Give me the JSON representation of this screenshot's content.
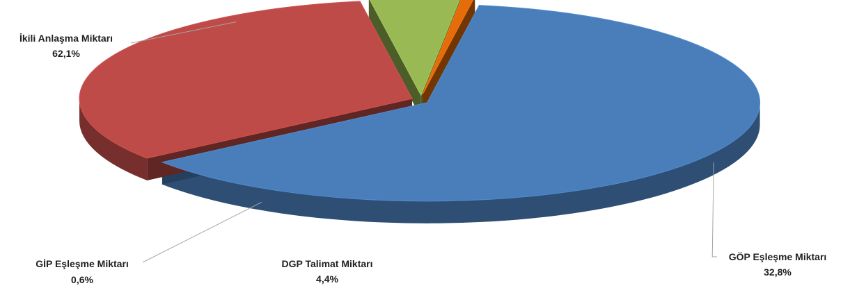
{
  "chart_data": {
    "type": "pie",
    "style": "3d-exploded",
    "slices": [
      {
        "name": "İkili Anlaşma Miktarı",
        "value": 62.1,
        "label": "62,1%",
        "color": "#4a7ebb"
      },
      {
        "name": "GÖP Eşleşme Miktarı",
        "value": 32.8,
        "label": "32,8%",
        "color": "#be4b48"
      },
      {
        "name": "DGP Talimat Miktarı",
        "value": 4.4,
        "label": "4,4%",
        "color": "#98b954"
      },
      {
        "name": "GİP Eşleşme Miktarı",
        "value": 0.6,
        "label": "0,6%",
        "color": "#e46c0a"
      }
    ],
    "legend": "none"
  }
}
